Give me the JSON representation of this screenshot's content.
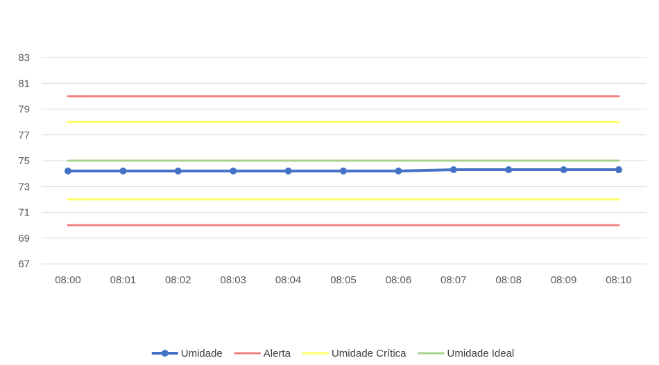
{
  "chart_data": {
    "type": "line",
    "title": "",
    "xlabel": "",
    "ylabel": "",
    "categories": [
      "08:00",
      "08:01",
      "08:02",
      "08:03",
      "08:04",
      "08:05",
      "08:06",
      "08:07",
      "08:08",
      "08:09",
      "08:10"
    ],
    "ylim": [
      67,
      83
    ],
    "y_ticks": [
      67,
      69,
      71,
      73,
      75,
      77,
      79,
      81,
      83
    ],
    "grid": "horizontal",
    "legend_position": "bottom",
    "series": [
      {
        "name": "Umidade",
        "values": [
          74.2,
          74.2,
          74.2,
          74.2,
          74.2,
          74.2,
          74.2,
          74.3,
          74.3,
          74.3,
          74.3
        ],
        "color": "#4472c4",
        "markers": true
      },
      {
        "name": "Alerta",
        "values": [
          80,
          80,
          80,
          80,
          80,
          80,
          80,
          80,
          80,
          80,
          80
        ],
        "color": "#f08080",
        "markers": false
      },
      {
        "name": "Alerta",
        "values": [
          70,
          70,
          70,
          70,
          70,
          70,
          70,
          70,
          70,
          70,
          70
        ],
        "color": "#f08080",
        "markers": false,
        "in_legend": false
      },
      {
        "name": "Umidade Crítica",
        "values": [
          78,
          78,
          78,
          78,
          78,
          78,
          78,
          78,
          78,
          78,
          78
        ],
        "color": "#ffff66",
        "markers": false
      },
      {
        "name": "Umidade Crítica",
        "values": [
          72,
          72,
          72,
          72,
          72,
          72,
          72,
          72,
          72,
          72,
          72
        ],
        "color": "#ffff66",
        "markers": false,
        "in_legend": false
      },
      {
        "name": "Umidade Ideal",
        "values": [
          75,
          75,
          75,
          75,
          75,
          75,
          75,
          75,
          75,
          75,
          75
        ],
        "color": "#a9d18e",
        "markers": false
      }
    ]
  }
}
